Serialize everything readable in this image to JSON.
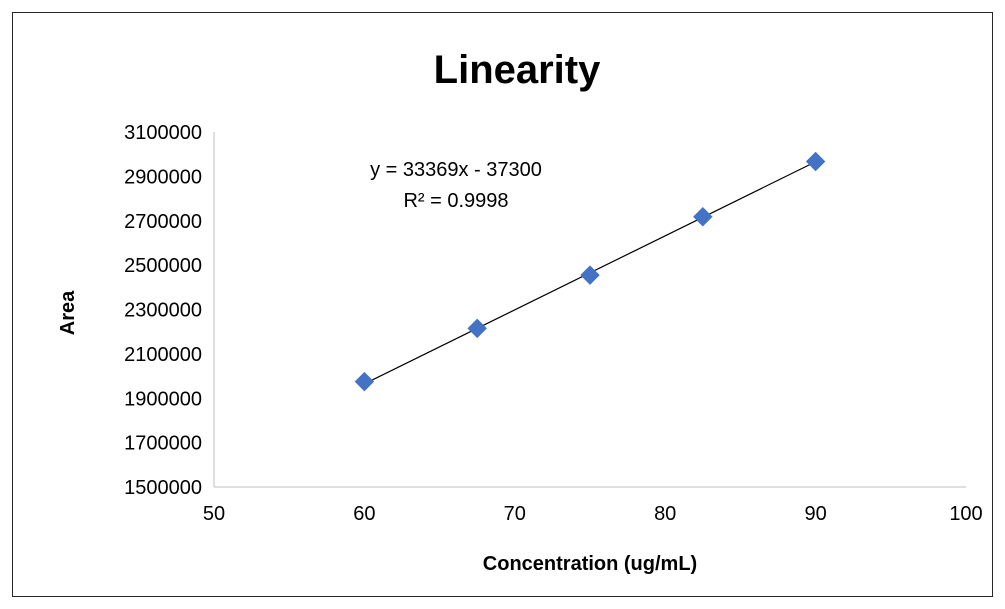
{
  "chart_data": {
    "type": "scatter",
    "title": "Linearity",
    "xlabel": "Concentration (ug/mL)",
    "ylabel": "Area",
    "xlim": [
      50,
      100
    ],
    "ylim": [
      1500000,
      3100000
    ],
    "x_ticks": [
      50,
      60,
      70,
      80,
      90,
      100
    ],
    "y_ticks": [
      1500000,
      1700000,
      1900000,
      2100000,
      2300000,
      2500000,
      2700000,
      2900000,
      3100000
    ],
    "series": [
      {
        "marker": "diamond",
        "color": "#4472C4",
        "points": [
          {
            "x": 60,
            "y": 1975000
          },
          {
            "x": 67.5,
            "y": 2215000
          },
          {
            "x": 75,
            "y": 2455000
          },
          {
            "x": 82.5,
            "y": 2718000
          },
          {
            "x": 90,
            "y": 2967000
          }
        ]
      }
    ],
    "trendline": {
      "type": "linear",
      "color": "#000000",
      "slope": 33369,
      "intercept": -37300,
      "x_range": [
        60,
        90
      ],
      "equation_label": "y = 33369x - 37300",
      "r2_label": "R² = 0.9998"
    },
    "grid": false,
    "legend": "none"
  }
}
